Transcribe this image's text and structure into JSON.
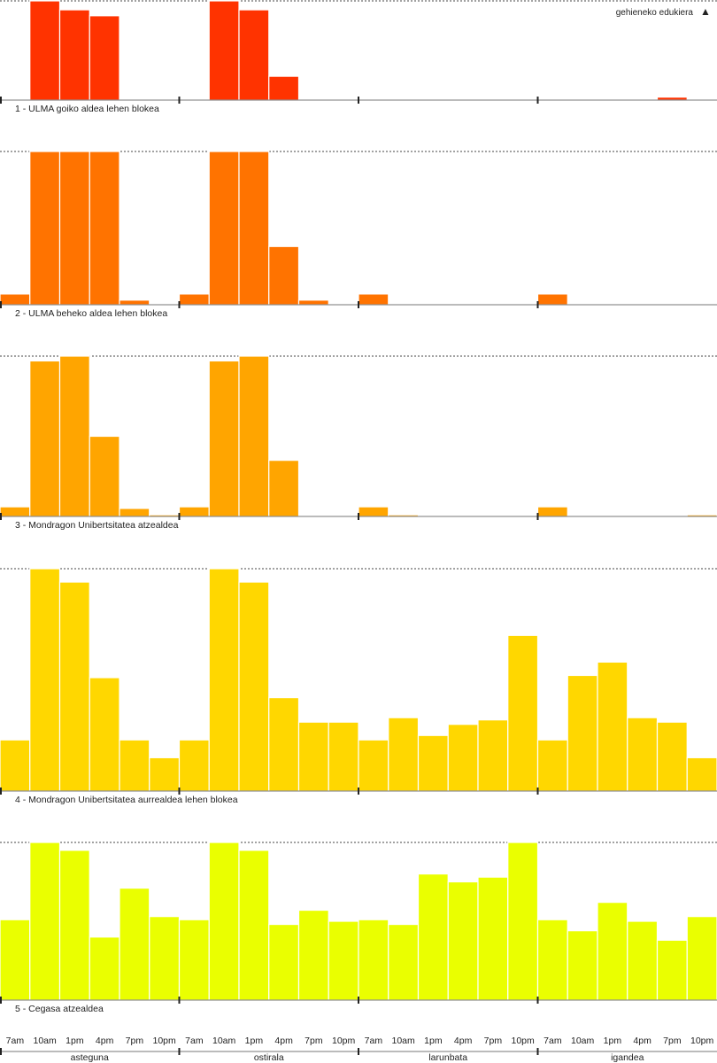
{
  "chart_data": {
    "type": "bar",
    "legend_label": "gehieneko edukiera",
    "legend_marker": "▲",
    "days": [
      "asteguna",
      "ostirala",
      "larunbata",
      "igandea"
    ],
    "time_slots": [
      "7am",
      "10am",
      "1pm",
      "4pm",
      "7pm",
      "10pm"
    ],
    "value_scale": "fraction of maximum occupancy",
    "ylim": [
      0,
      1
    ],
    "series": [
      {
        "name": "1 - ULMA goiko aldea lehen blokea",
        "color": "#ff3300",
        "values": [
          [
            0,
            1.0,
            0.91,
            0.85,
            0,
            0
          ],
          [
            0,
            1.0,
            0.91,
            0.24,
            0,
            0
          ],
          [
            0,
            0,
            0,
            0,
            0,
            0
          ],
          [
            0,
            0,
            0,
            0,
            0.03,
            0
          ]
        ]
      },
      {
        "name": "2 - ULMA beheko aldea lehen blokea",
        "color": "#ff7300",
        "values": [
          [
            0.07,
            1.0,
            1.0,
            1.0,
            0.03,
            0
          ],
          [
            0.07,
            1.0,
            1.0,
            0.38,
            0.03,
            0
          ],
          [
            0.07,
            0,
            0,
            0,
            0,
            0
          ],
          [
            0.07,
            0,
            0,
            0,
            0,
            0
          ]
        ]
      },
      {
        "name": "3 - Mondragon Unibertsitatea atzealdea",
        "color": "#ffa500",
        "values": [
          [
            0.06,
            0.97,
            1.0,
            0.5,
            0.05,
            0.01
          ],
          [
            0.06,
            0.97,
            1.0,
            0.35,
            0,
            0
          ],
          [
            0.06,
            0.01,
            0,
            0,
            0,
            0
          ],
          [
            0.06,
            0,
            0,
            0,
            0,
            0.01
          ]
        ]
      },
      {
        "name": "4 - Mondragon Unibertsitatea aurrealdea lehen blokea",
        "color": "#ffd700",
        "values": [
          [
            0.23,
            1.0,
            0.94,
            0.51,
            0.23,
            0.15
          ],
          [
            0.23,
            1.0,
            0.94,
            0.42,
            0.31,
            0.31
          ],
          [
            0.23,
            0.33,
            0.25,
            0.3,
            0.32,
            0.7
          ],
          [
            0.23,
            0.52,
            0.58,
            0.33,
            0.31,
            0.15
          ]
        ]
      },
      {
        "name": "5 - Cegasa atzealdea",
        "color": "#eaff00",
        "values": [
          [
            0.51,
            1.0,
            0.95,
            0.4,
            0.71,
            0.53
          ],
          [
            0.51,
            1.0,
            0.95,
            0.48,
            0.57,
            0.5
          ],
          [
            0.51,
            0.48,
            0.8,
            0.75,
            0.78,
            1.0
          ],
          [
            0.51,
            0.44,
            0.62,
            0.5,
            0.38,
            0.53
          ]
        ]
      }
    ]
  }
}
